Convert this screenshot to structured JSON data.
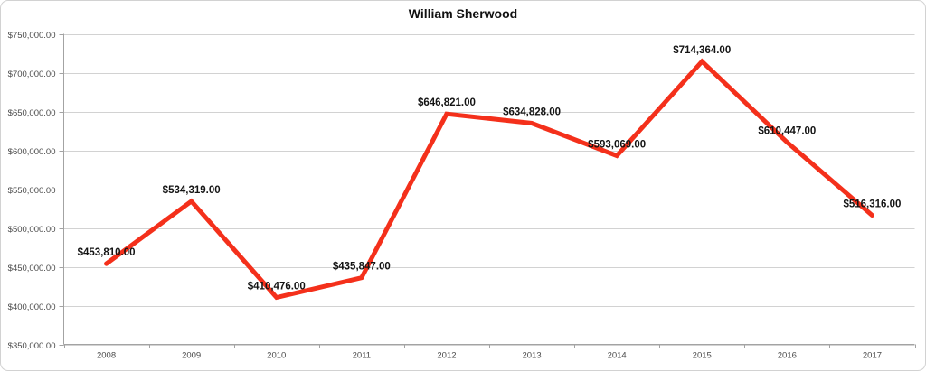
{
  "chart_data": {
    "type": "line",
    "title": "William Sherwood",
    "categories": [
      "2008",
      "2009",
      "2010",
      "2011",
      "2012",
      "2013",
      "2014",
      "2015",
      "2016",
      "2017"
    ],
    "series": [
      {
        "name": "William Sherwood",
        "values": [
          453810,
          534319,
          410476,
          435847,
          646821,
          634828,
          593069,
          714364,
          610447,
          516316
        ],
        "labels": [
          "$453,810.00",
          "$534,319.00",
          "$410,476.00",
          "$435,847.00",
          "$646,821.00",
          "$634,828.00",
          "$593,069.00",
          "$714,364.00",
          "$610,447.00",
          "$516,316.00"
        ],
        "color": "#f4301b"
      }
    ],
    "xlabel": "",
    "ylabel": "",
    "ylim": [
      350000,
      750000
    ],
    "ytick_step": 50000,
    "ytick_labels": [
      "$350,000.00",
      "$400,000.00",
      "$450,000.00",
      "$500,000.00",
      "$550,000.00",
      "$600,000.00",
      "$650,000.00",
      "$700,000.00",
      "$750,000.00"
    ],
    "grid": true,
    "legend_position": "none",
    "data_label_position": "above",
    "colors": {
      "line": "#f4301b",
      "gridline": "#d2d2d2",
      "axis": "#a3a3a3",
      "tick_label": "#4a4a4a",
      "data_label": "#141414",
      "title": "#111111",
      "background": "#ffffff",
      "frame_border": "#d2d2d2"
    }
  }
}
